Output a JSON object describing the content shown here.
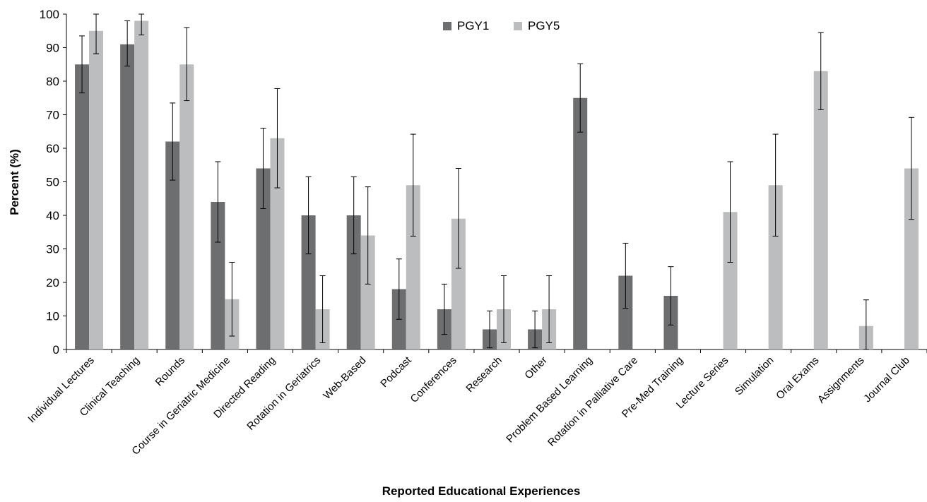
{
  "chart_data": {
    "type": "bar",
    "title": "",
    "xlabel": "Reported Educational Experiences",
    "ylabel": "Percent (%)",
    "ylim": [
      0,
      100
    ],
    "yticks": [
      0,
      10,
      20,
      30,
      40,
      50,
      60,
      70,
      80,
      90,
      100
    ],
    "grid": false,
    "legend_position": "top-center",
    "categories": [
      "Individual Lectures",
      "Clinical Teaching",
      "Rounds",
      "Course in Geriatric Medicine",
      "Directed Reading",
      "Rotation in Geriatrics",
      "Web-Based",
      "Podcast",
      "Conferences",
      "Research",
      "Other",
      "Problem Based Learning",
      "Rotation in Palliative Care",
      "Pre-Med Training",
      "Lecture Series",
      "Simulation",
      "Oral Exams",
      "Assignments",
      "Journal Club"
    ],
    "series": [
      {
        "name": "PGY1",
        "color": "#6d6e70",
        "values": [
          85,
          91,
          62,
          44,
          54,
          40,
          40,
          18,
          12,
          6,
          6,
          75,
          22,
          16,
          null,
          null,
          null,
          null,
          null
        ],
        "error_low": [
          76.5,
          84.5,
          50.5,
          32,
          42,
          28.5,
          28.5,
          9,
          4.5,
          0.5,
          0.5,
          64.8,
          12.3,
          7.3,
          null,
          null,
          null,
          null,
          null
        ],
        "error_high": [
          93.5,
          98,
          73.5,
          56,
          66,
          51.5,
          51.5,
          27,
          19.5,
          11.5,
          11.5,
          85.2,
          31.7,
          24.7,
          null,
          null,
          null,
          null,
          null
        ]
      },
      {
        "name": "PGY5",
        "color": "#bcbdbf",
        "values": [
          95,
          98,
          85,
          15,
          63,
          12,
          34,
          49,
          39,
          12,
          12,
          null,
          null,
          null,
          41,
          49,
          83,
          7,
          54
        ],
        "error_low": [
          88.2,
          93.8,
          74.2,
          4,
          48.2,
          2,
          19.5,
          33.8,
          24.2,
          2,
          2,
          null,
          null,
          null,
          26,
          33.8,
          71.5,
          0,
          38.8
        ],
        "error_high": [
          100,
          100,
          96,
          26,
          77.8,
          22,
          48.5,
          64.2,
          54,
          22,
          22,
          null,
          null,
          null,
          56,
          64.2,
          94.5,
          14.8,
          69.2
        ]
      }
    ]
  }
}
